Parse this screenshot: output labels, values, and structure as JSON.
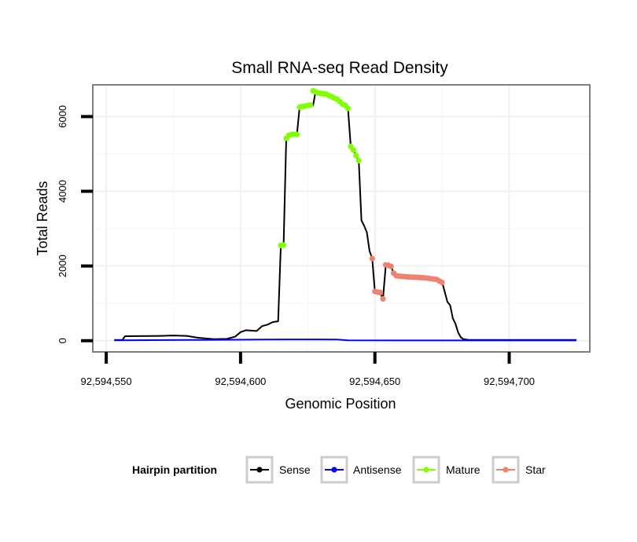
{
  "chart_data": {
    "type": "line",
    "title": "Small RNA-seq Read Density",
    "xlabel": "Genomic Position",
    "ylabel": "Total Reads",
    "xlim": [
      92594545,
      92594730
    ],
    "ylim": [
      -300,
      6850
    ],
    "x_ticks": [
      92594550,
      92594600,
      92594650,
      92594700
    ],
    "x_tick_labels": [
      "92,594,550",
      "92,594,600",
      "92,594,650",
      "92,594,700"
    ],
    "y_ticks": [
      0,
      2000,
      4000,
      6000
    ],
    "y_tick_labels": [
      "0",
      "2000",
      "4000",
      "6000"
    ],
    "grid": true,
    "series": [
      {
        "name": "Sense",
        "color": "#000000",
        "marker": false,
        "x": [
          92594553,
          92594556,
          92594557,
          92594570,
          92594575,
          92594580,
          92594584,
          92594590,
          92594595,
          92594598,
          92594600,
          92594602,
          92594606,
          92594608,
          92594610,
          92594612,
          92594614,
          92594615,
          92594616,
          92594617,
          92594618,
          92594620,
          92594621,
          92594622,
          92594624,
          92594626,
          92594627,
          92594628,
          92594630,
          92594632,
          92594634,
          92594636,
          92594638,
          92594640,
          92594641,
          92594642,
          92594643,
          92594644,
          92594645,
          92594646,
          92594647,
          92594648,
          92594649,
          92594650,
          92594651,
          92594652,
          92594653,
          92594654,
          92594655,
          92594656,
          92594657,
          92594658,
          92594660,
          92594665,
          92594670,
          92594673,
          92594675,
          92594677,
          92594678,
          92594679,
          92594680,
          92594681,
          92594682,
          92594683,
          92594685,
          92594700,
          92594725
        ],
        "y": [
          20,
          20,
          120,
          130,
          140,
          130,
          80,
          40,
          50,
          110,
          230,
          280,
          260,
          390,
          430,
          500,
          520,
          2550,
          2560,
          5420,
          5500,
          5520,
          5530,
          6250,
          6280,
          6310,
          6300,
          6690,
          6640,
          6620,
          6560,
          6460,
          6330,
          6220,
          5200,
          5100,
          4960,
          4820,
          3220,
          3080,
          2900,
          2400,
          2200,
          1320,
          1300,
          1280,
          1120,
          1980,
          2030,
          1990,
          1810,
          1730,
          1720,
          1700,
          1690,
          1650,
          1580,
          1040,
          950,
          600,
          450,
          220,
          90,
          40,
          20,
          20,
          20
        ]
      },
      {
        "name": "Antisense",
        "color": "#0000ff",
        "marker": false,
        "x": [
          92594553,
          92594580,
          92594598,
          92594608,
          92594618,
          92594628,
          92594636,
          92594640,
          92594660,
          92594680,
          92594700,
          92594725
        ],
        "y": [
          10,
          20,
          25,
          30,
          35,
          35,
          30,
          10,
          8,
          8,
          8,
          8
        ]
      },
      {
        "name": "Mature",
        "color": "#80ff00",
        "marker": true,
        "points": [
          [
            92594615,
            2550
          ],
          [
            92594616,
            2560
          ],
          [
            92594617,
            5420
          ],
          [
            92594618,
            5500
          ],
          [
            92594619,
            5520
          ],
          [
            92594620,
            5530
          ],
          [
            92594621,
            5520
          ],
          [
            92594622,
            6250
          ],
          [
            92594623,
            6270
          ],
          [
            92594624,
            6280
          ],
          [
            92594625,
            6300
          ],
          [
            92594626,
            6310
          ],
          [
            92594627,
            6690
          ],
          [
            92594628,
            6660
          ],
          [
            92594629,
            6630
          ],
          [
            92594630,
            6620
          ],
          [
            92594631,
            6610
          ],
          [
            92594632,
            6600
          ],
          [
            92594633,
            6560
          ],
          [
            92594634,
            6530
          ],
          [
            92594635,
            6490
          ],
          [
            92594636,
            6460
          ],
          [
            92594637,
            6400
          ],
          [
            92594638,
            6330
          ],
          [
            92594639,
            6300
          ],
          [
            92594640,
            6220
          ],
          [
            92594641,
            5200
          ],
          [
            92594642,
            5100
          ],
          [
            92594643,
            4960
          ],
          [
            92594644,
            4820
          ]
        ]
      },
      {
        "name": "Star",
        "color": "#f08070",
        "marker": true,
        "points": [
          [
            92594649,
            2200
          ],
          [
            92594650,
            1320
          ],
          [
            92594651,
            1300
          ],
          [
            92594652,
            1290
          ],
          [
            92594653,
            1120
          ],
          [
            92594654,
            2030
          ],
          [
            92594655,
            2020
          ],
          [
            92594656,
            1990
          ],
          [
            92594657,
            1810
          ],
          [
            92594658,
            1740
          ],
          [
            92594659,
            1730
          ],
          [
            92594660,
            1720
          ],
          [
            92594661,
            1715
          ],
          [
            92594662,
            1710
          ],
          [
            92594663,
            1705
          ],
          [
            92594664,
            1700
          ],
          [
            92594665,
            1700
          ],
          [
            92594666,
            1695
          ],
          [
            92594667,
            1690
          ],
          [
            92594668,
            1685
          ],
          [
            92594669,
            1680
          ],
          [
            92594670,
            1670
          ],
          [
            92594671,
            1660
          ],
          [
            92594672,
            1650
          ],
          [
            92594673,
            1640
          ],
          [
            92594674,
            1600
          ],
          [
            92594675,
            1560
          ]
        ]
      }
    ],
    "legend": {
      "title": "Hairpin partition",
      "position": "bottom",
      "entries": [
        {
          "label": "Sense",
          "color": "#000000"
        },
        {
          "label": "Antisense",
          "color": "#0000ff"
        },
        {
          "label": "Mature",
          "color": "#80ff00"
        },
        {
          "label": "Star",
          "color": "#f08070"
        }
      ]
    }
  }
}
